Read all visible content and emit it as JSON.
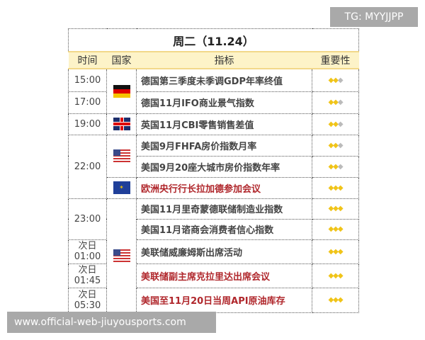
{
  "tag": "TG: MYYJJPP",
  "website": "www.official-web-jiuyousports.com",
  "title": "周二（11.24）",
  "headers": [
    "时间",
    "国家",
    "指标",
    "重要性"
  ],
  "colors": {
    "gold_star": "#f0c419",
    "grey_star": "#bbbbbb",
    "header_bg": "#fdf3c8",
    "highlight_text": "#b0272c"
  },
  "rows": [
    {
      "time": "15:00",
      "country": "germany-flag",
      "indicator": "德国第三季度未季调GDP年率终值",
      "stars": 2
    },
    {
      "time": "17:00",
      "indicator": "德国11月IFO商业景气指数",
      "stars": 2
    },
    {
      "time": "19:00",
      "country": "uk-flag",
      "indicator": "英国11月CBI零售销售差值",
      "stars": 2
    },
    {
      "time": "22:00",
      "country": "us-flag",
      "indicator": "美国9月FHFA房价指数月率",
      "stars": 2
    },
    {
      "indicator": "美国9月20座大城市房价指数年率",
      "stars": 2
    },
    {
      "country": "eu-flag",
      "indicator": "欧洲央行行长拉加德参加会议",
      "stars": 3,
      "highlight": true
    },
    {
      "time": "23:00",
      "country": "us-flag",
      "indicator": "美国11月里奇蒙德联储制造业指数",
      "stars": 3
    },
    {
      "indicator": "美国11月谘商会消费者信心指数",
      "stars": 3
    },
    {
      "time_day": "次日",
      "time": "01:00",
      "indicator": "美联储威廉姆斯出席活动",
      "stars": 3
    },
    {
      "time_day": "次日",
      "time": "01:45",
      "indicator": "美联储副主席克拉里达出席会议",
      "stars": 3,
      "highlight": true
    },
    {
      "time_day": "次日",
      "time": "05:30",
      "indicator": "美国至11月20日当周API原油库存",
      "stars": 3,
      "highlight": true
    }
  ]
}
